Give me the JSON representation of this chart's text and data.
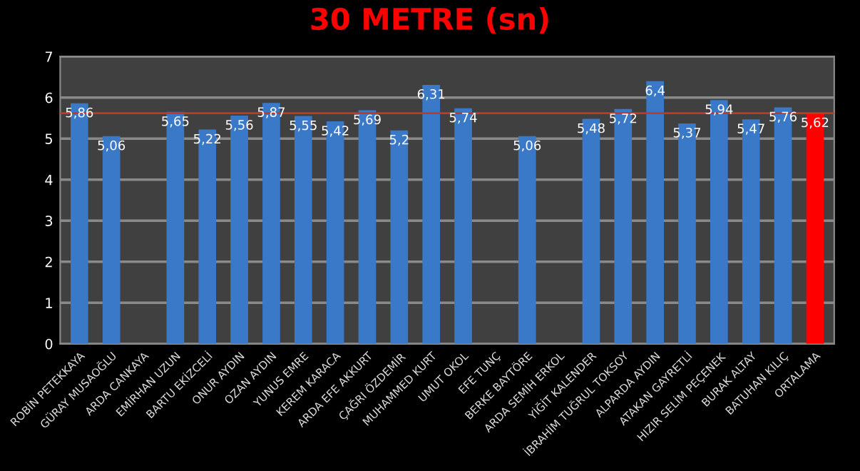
{
  "chart_data": {
    "type": "bar",
    "title": "30 METRE (sn)",
    "categories": [
      "ROBİN PETEKKAYA",
      "GÜRAY MUSAOĞLU",
      "ARDA CANKAYA",
      "EMİRHAN UZUN",
      "BARTU EKİZCELİ",
      "ONUR AYDIN",
      "OZAN AYDIN",
      "YUNUS EMRE",
      "KEREM KARACA",
      "ARDA EFE AKKURT",
      "ÇAĞRI ÖZDEMİR",
      "MUHAMMED KURT",
      "UMUT OKOL",
      "EFE TUNÇ",
      "BERKE BAYTÖRE",
      "ARDA SEMİH ERKOL",
      "YİĞİT KALENDER",
      "İBRAHİM TUĞRUL TOKSOY",
      "ALPARDA AYDIN",
      "ATAKAN GAYRETLİ",
      "HIZIR SELİM PEÇENEK",
      "BURAK ALTAY",
      "BATUHAN KILIÇ",
      "ORTALAMA"
    ],
    "values": [
      5.86,
      5.06,
      null,
      5.65,
      5.22,
      5.56,
      5.87,
      5.55,
      5.42,
      5.69,
      5.2,
      6.31,
      5.74,
      null,
      5.06,
      null,
      5.48,
      5.72,
      6.4,
      5.37,
      5.94,
      5.47,
      5.76,
      5.62
    ],
    "value_labels": [
      "5,86",
      "5,06",
      null,
      "5,65",
      "5,22",
      "5,56",
      "5,87",
      "5,55",
      "5,42",
      "5,69",
      "5,2",
      "6,31",
      "5,74",
      null,
      "5,06",
      null,
      "5,48",
      "5,72",
      "6,4",
      "5,37",
      "5,94",
      "5,47",
      "5,76",
      "5,62"
    ],
    "colors": [
      "#3a78c8",
      "#3a78c8",
      "#3a78c8",
      "#3a78c8",
      "#3a78c8",
      "#3a78c8",
      "#3a78c8",
      "#3a78c8",
      "#3a78c8",
      "#3a78c8",
      "#3a78c8",
      "#3a78c8",
      "#3a78c8",
      "#3a78c8",
      "#3a78c8",
      "#3a78c8",
      "#3a78c8",
      "#3a78c8",
      "#3a78c8",
      "#3a78c8",
      "#3a78c8",
      "#3a78c8",
      "#3a78c8",
      "#ff0000"
    ],
    "ylim": [
      0,
      7
    ],
    "yticks": [
      0,
      1,
      2,
      3,
      4,
      5,
      6,
      7
    ],
    "grid": "y",
    "ref_lines": [
      {
        "axis": "y",
        "value": 5.62,
        "color": "#c0392b"
      }
    ]
  }
}
